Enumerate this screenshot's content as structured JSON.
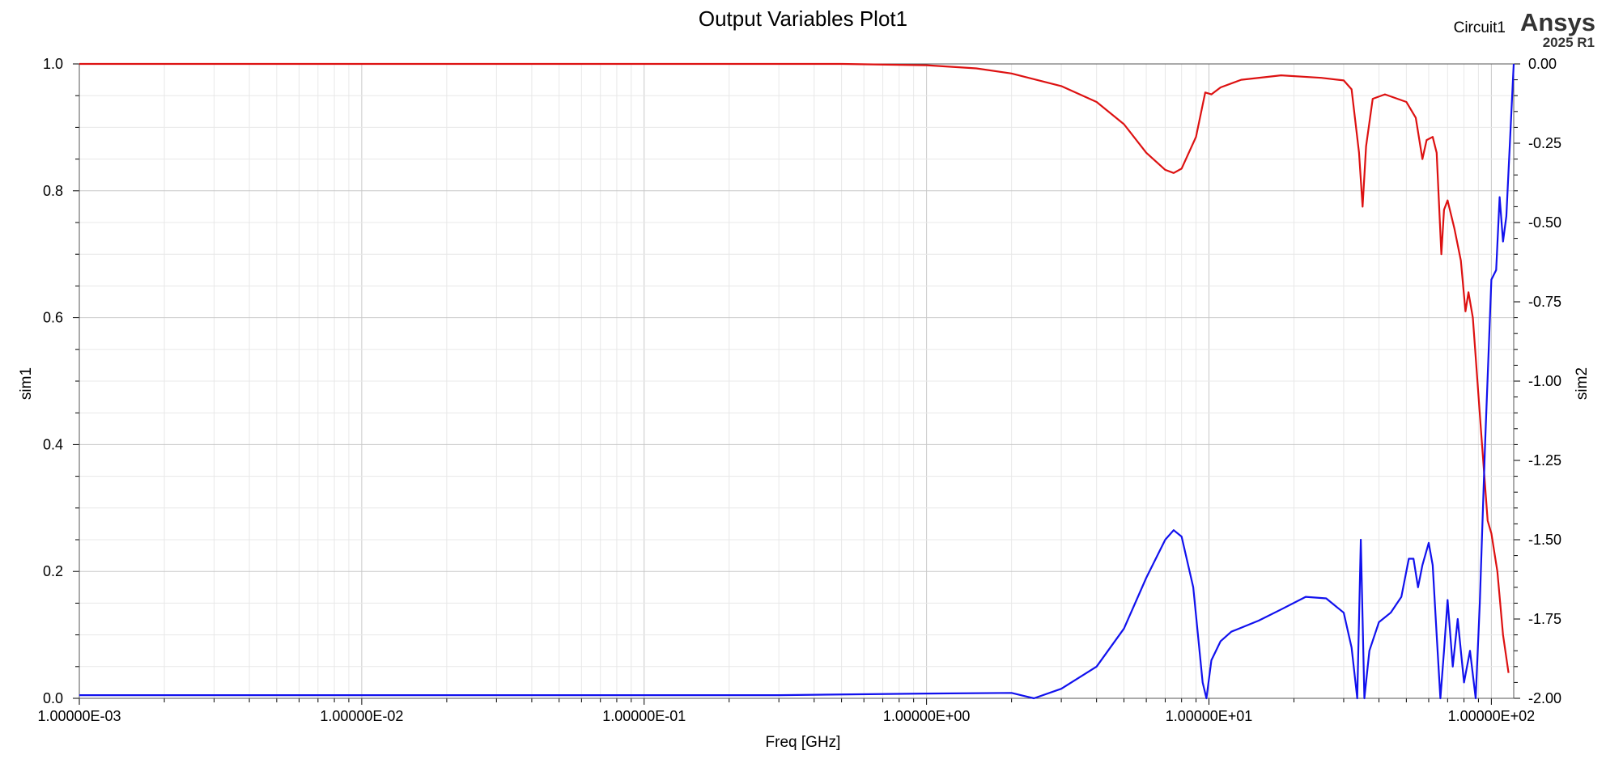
{
  "header": {
    "title": "Output Variables Plot1",
    "circuit": "Circuit1",
    "brand": "Ansys",
    "version": "2025 R1"
  },
  "chart_data": {
    "type": "line",
    "title": "Output Variables Plot1",
    "xlabel": "Freq [GHz]",
    "ylabel_left": "sim1",
    "ylabel_right": "sim2",
    "xscale": "log",
    "xlim": [
      0.001,
      120
    ],
    "ylim_left": [
      0,
      1
    ],
    "ylim_right": [
      -2,
      0
    ],
    "grid": true,
    "x_ticks": [
      0.001,
      0.01,
      0.1,
      1,
      10,
      100
    ],
    "x_tick_labels": [
      "1.00000E-03",
      "1.00000E-02",
      "1.00000E-01",
      "1.00000E+00",
      "1.00000E+01",
      "1.00000E+02"
    ],
    "y_left_ticks": [
      "0.0",
      "0.2",
      "0.4",
      "0.6",
      "0.8",
      "1.0"
    ],
    "y_right_ticks": [
      "0.00",
      "-0.25",
      "-0.50",
      "-0.75",
      "-1.00",
      "-1.25",
      "-1.50",
      "-1.75",
      "-2.00"
    ],
    "series": [
      {
        "axis": "left",
        "color": "#dd1111",
        "points": [
          [
            0.001,
            1.0
          ],
          [
            0.1,
            1.0
          ],
          [
            0.5,
            1.0
          ],
          [
            1.0,
            0.998
          ],
          [
            1.5,
            0.993
          ],
          [
            2.0,
            0.985
          ],
          [
            3.0,
            0.965
          ],
          [
            4.0,
            0.94
          ],
          [
            5.0,
            0.905
          ],
          [
            6.0,
            0.86
          ],
          [
            7.0,
            0.833
          ],
          [
            7.5,
            0.828
          ],
          [
            8.0,
            0.835
          ],
          [
            9.0,
            0.885
          ],
          [
            9.7,
            0.955
          ],
          [
            10.2,
            0.952
          ],
          [
            11.0,
            0.963
          ],
          [
            13.0,
            0.975
          ],
          [
            18.0,
            0.982
          ],
          [
            25.0,
            0.978
          ],
          [
            30.0,
            0.974
          ],
          [
            32.0,
            0.96
          ],
          [
            34.0,
            0.86
          ],
          [
            35.0,
            0.775
          ],
          [
            36.0,
            0.87
          ],
          [
            38.0,
            0.945
          ],
          [
            42.0,
            0.952
          ],
          [
            50.0,
            0.94
          ],
          [
            54.0,
            0.915
          ],
          [
            57.0,
            0.85
          ],
          [
            59.0,
            0.88
          ],
          [
            62.0,
            0.885
          ],
          [
            64.0,
            0.86
          ],
          [
            66.5,
            0.7
          ],
          [
            68.0,
            0.77
          ],
          [
            70.0,
            0.785
          ],
          [
            74.0,
            0.74
          ],
          [
            78.0,
            0.69
          ],
          [
            81.0,
            0.61
          ],
          [
            83.0,
            0.64
          ],
          [
            86.0,
            0.6
          ],
          [
            92.0,
            0.42
          ],
          [
            97.0,
            0.28
          ],
          [
            100.0,
            0.26
          ],
          [
            105.0,
            0.2
          ],
          [
            110.0,
            0.1
          ],
          [
            115.0,
            0.04
          ]
        ]
      },
      {
        "axis": "right",
        "color": "#1111ee",
        "points": [
          [
            0.001,
            -1.99
          ],
          [
            0.3,
            -1.99
          ],
          [
            1.0,
            -1.985
          ],
          [
            2.0,
            -1.983
          ],
          [
            2.4,
            -2.0
          ],
          [
            3.0,
            -1.97
          ],
          [
            4.0,
            -1.9
          ],
          [
            5.0,
            -1.78
          ],
          [
            6.0,
            -1.62
          ],
          [
            7.0,
            -1.5
          ],
          [
            7.5,
            -1.47
          ],
          [
            8.0,
            -1.49
          ],
          [
            8.8,
            -1.65
          ],
          [
            9.5,
            -1.95
          ],
          [
            9.8,
            -2.0
          ],
          [
            10.2,
            -1.88
          ],
          [
            11.0,
            -1.82
          ],
          [
            12.0,
            -1.79
          ],
          [
            15.0,
            -1.755
          ],
          [
            18.0,
            -1.72
          ],
          [
            22.0,
            -1.68
          ],
          [
            26.0,
            -1.685
          ],
          [
            30.0,
            -1.73
          ],
          [
            32.0,
            -1.84
          ],
          [
            33.5,
            -2.0
          ],
          [
            34.5,
            -1.5
          ],
          [
            35.5,
            -2.0
          ],
          [
            37.0,
            -1.85
          ],
          [
            40.0,
            -1.76
          ],
          [
            44.0,
            -1.73
          ],
          [
            48.0,
            -1.68
          ],
          [
            51.0,
            -1.56
          ],
          [
            53.0,
            -1.56
          ],
          [
            55.0,
            -1.65
          ],
          [
            57.0,
            -1.58
          ],
          [
            60.0,
            -1.51
          ],
          [
            62.0,
            -1.58
          ],
          [
            64.0,
            -1.8
          ],
          [
            66.0,
            -2.0
          ],
          [
            68.0,
            -1.85
          ],
          [
            70.0,
            -1.69
          ],
          [
            73.0,
            -1.9
          ],
          [
            76.0,
            -1.75
          ],
          [
            80.0,
            -1.95
          ],
          [
            84.0,
            -1.85
          ],
          [
            88.0,
            -2.0
          ],
          [
            91.0,
            -1.7
          ],
          [
            95.0,
            -1.2
          ],
          [
            100.0,
            -0.68
          ],
          [
            104.0,
            -0.65
          ],
          [
            107.0,
            -0.42
          ],
          [
            110.0,
            -0.56
          ],
          [
            113.0,
            -0.48
          ],
          [
            117.0,
            -0.2
          ],
          [
            120.0,
            0.0
          ]
        ]
      }
    ]
  }
}
